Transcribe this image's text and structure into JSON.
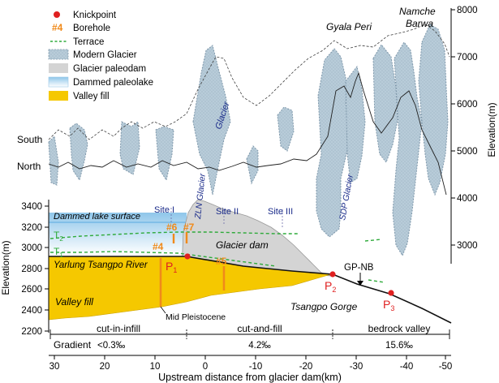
{
  "legend": {
    "knickpoint": "Knickpoint",
    "borehole_symbol": "#4",
    "borehole": "Borehole",
    "terrace": "Terrace",
    "modern_glacier": "Modern Glacier",
    "glacier_paleodam": "Glacier paleodam",
    "dammed_paleolake": "Dammed paleolake",
    "valley_fill": "Valley fill"
  },
  "peaks": {
    "namche_1": "Namche",
    "namche_2": "Barwa",
    "gyala": "Gyala Peri"
  },
  "profiles": {
    "south": "South",
    "north": "North"
  },
  "glacier_labels": {
    "glacier": "Glacier",
    "zln": "ZLN Glacier",
    "sdp": "SDP Glacier"
  },
  "lake": {
    "surface": "Dammed lake surface"
  },
  "sites": [
    "Site I",
    "Site II",
    "Site III"
  ],
  "terraces": {
    "t2": "T",
    "t2_sub": "2",
    "t1": "T",
    "t1_sub": "1"
  },
  "boreholes": [
    "#6",
    "#7",
    "#4",
    "#5"
  ],
  "knickpoints": [
    {
      "letter": "P",
      "sub": "1"
    },
    {
      "letter": "P",
      "sub": "2"
    },
    {
      "letter": "P",
      "sub": "3"
    }
  ],
  "labels": {
    "river": "Yarlung Tsangpo River",
    "glacier_dam": "Glacier dam",
    "gpnb": "GP-NB",
    "gorge": "Tsangpo Gorge",
    "valley_fill": "Valley fill",
    "mid_pleistocene": "Mid Pleistocene"
  },
  "segments": {
    "s1": "cut-in-infill",
    "s2": "cut-and-fill",
    "s3": "bedrock valley",
    "gradient_label": "Gradient",
    "g1": "<0.3‰",
    "g2": "4.2‰",
    "g3": "15.6‰"
  },
  "left_axis": {
    "title": "Elevation(m)",
    "ticks": [
      "3400",
      "3200",
      "3000",
      "2800",
      "2600",
      "2400",
      "2200"
    ]
  },
  "right_axis": {
    "title": "Elevation(m)",
    "ticks": [
      "8000",
      "7000",
      "6000",
      "5000",
      "4000",
      "3000"
    ]
  },
  "x_axis": {
    "title": "Upstream distance from glacier dam(km)",
    "ticks": [
      "30",
      "20",
      "10",
      "0",
      "-10",
      "-20",
      "-30",
      "-40",
      "-50"
    ]
  },
  "colors": {
    "glacier_fill": "#b8ccd9",
    "glacier_edge": "#7f98ab",
    "paleodam": "#d4d4d4",
    "lake_top": "#a9d4ee",
    "valley_fill": "#f5c800",
    "knickpoint": "#e02020",
    "borehole": "#f08a1a",
    "terrace": "#2eaa3a",
    "accent_red": "#e02020"
  }
}
